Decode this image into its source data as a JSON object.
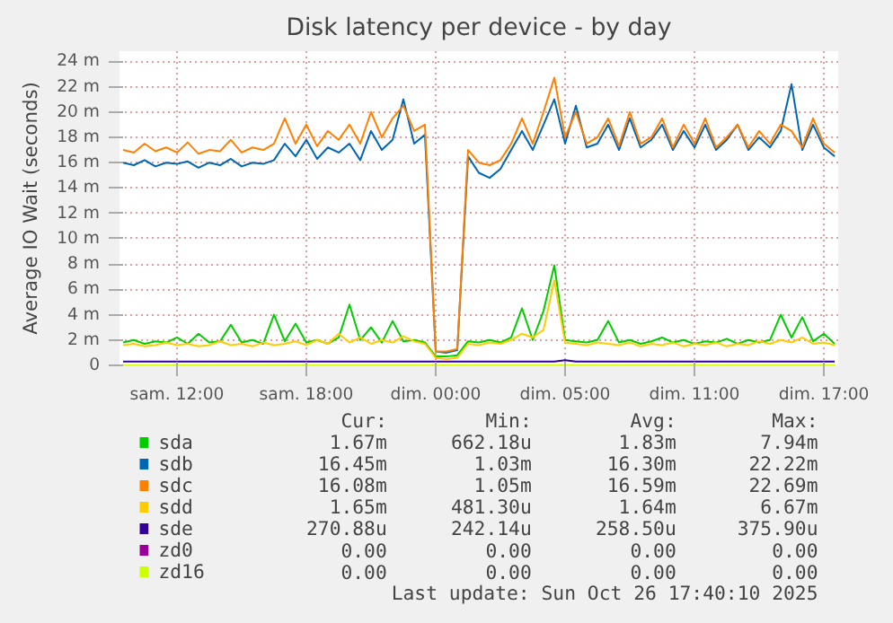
{
  "chart_data": {
    "type": "line",
    "title": "Disk latency per device - by day",
    "ylabel": "Average IO Wait (seconds)",
    "categories": [
      null,
      null,
      null,
      null,
      null,
      "sam. 12:00",
      null,
      null,
      null,
      null,
      null,
      null,
      null,
      null,
      null,
      null,
      null,
      "sam. 18:00",
      null,
      null,
      null,
      null,
      null,
      null,
      null,
      null,
      null,
      null,
      null,
      "dim. 00:00",
      null,
      null,
      null,
      null,
      null,
      null,
      null,
      null,
      null,
      null,
      null,
      "dim. 05:00",
      null,
      null,
      null,
      null,
      null,
      null,
      null,
      null,
      null,
      null,
      null,
      "dim. 11:00",
      null,
      null,
      null,
      null,
      null,
      null,
      null,
      null,
      null,
      null,
      null,
      "dim. 17:00",
      null
    ],
    "ylim": [
      0,
      24.8
    ],
    "yticks": [
      0,
      {
        "value": 2,
        "label": "2 m"
      },
      {
        "value": 4,
        "label": "4 m"
      },
      {
        "value": 6,
        "label": "6 m"
      },
      {
        "value": 8,
        "label": "8 m"
      },
      {
        "value": 10,
        "label": "10 m"
      },
      {
        "value": 12,
        "label": "12 m"
      },
      {
        "value": 14,
        "label": "14 m"
      },
      {
        "value": 16,
        "label": "16 m"
      },
      {
        "value": 18,
        "label": "18 m"
      },
      {
        "value": 20,
        "label": "20 m"
      },
      {
        "value": 22,
        "label": "22 m"
      },
      {
        "value": 24,
        "label": "24 m"
      }
    ],
    "grid": true,
    "legend": "bottom",
    "series": [
      {
        "name": "sda",
        "color": "#00cc00",
        "values": [
          1.8,
          2.0,
          1.7,
          1.9,
          1.8,
          2.2,
          1.7,
          2.5,
          1.8,
          1.9,
          3.2,
          1.8,
          2.0,
          1.7,
          4.0,
          1.9,
          3.3,
          1.8,
          2.0,
          1.7,
          2.2,
          4.8,
          2.0,
          3.0,
          1.8,
          3.5,
          1.9,
          2.0,
          1.8,
          0.7,
          0.7,
          0.8,
          1.9,
          1.8,
          2.0,
          1.8,
          2.2,
          4.5,
          2.0,
          4.3,
          7.9,
          2.0,
          1.9,
          1.8,
          2.0,
          3.5,
          1.8,
          2.0,
          1.7,
          1.9,
          2.2,
          1.8,
          2.0,
          1.7,
          1.9,
          1.8,
          2.1,
          1.7,
          2.0,
          1.8,
          2.0,
          4.0,
          2.2,
          3.8,
          1.9,
          2.5,
          1.7
        ]
      },
      {
        "name": "sdb",
        "color": "#0066b3",
        "values": [
          16.0,
          15.8,
          16.2,
          15.7,
          16.0,
          15.9,
          16.1,
          15.6,
          16.0,
          15.8,
          16.3,
          15.7,
          16.0,
          15.9,
          16.2,
          17.5,
          16.5,
          17.8,
          16.3,
          17.2,
          16.8,
          17.5,
          16.2,
          18.5,
          17.0,
          17.8,
          21.0,
          17.5,
          18.2,
          1.1,
          1.0,
          1.2,
          16.5,
          15.2,
          14.8,
          15.5,
          17.0,
          18.5,
          17.0,
          19.0,
          21.0,
          17.5,
          20.5,
          17.2,
          17.5,
          19.0,
          17.0,
          19.5,
          17.2,
          17.8,
          19.0,
          17.0,
          18.5,
          17.2,
          19.0,
          17.0,
          17.8,
          19.0,
          17.0,
          18.0,
          17.2,
          18.5,
          22.2,
          17.0,
          19.0,
          17.2,
          16.5
        ]
      },
      {
        "name": "sdc",
        "color": "#ff8000",
        "values": [
          17.0,
          16.8,
          17.5,
          16.9,
          17.2,
          16.8,
          17.6,
          16.7,
          17.0,
          16.9,
          17.8,
          16.8,
          17.2,
          17.0,
          17.5,
          19.5,
          17.5,
          19.0,
          17.3,
          18.5,
          17.8,
          19.0,
          17.5,
          20.0,
          18.0,
          19.5,
          20.5,
          18.5,
          19.0,
          1.1,
          1.1,
          1.3,
          17.0,
          16.0,
          15.8,
          16.2,
          17.5,
          19.5,
          17.5,
          20.0,
          22.7,
          18.0,
          20.0,
          17.5,
          18.0,
          19.5,
          17.3,
          20.0,
          17.5,
          18.0,
          19.5,
          17.2,
          19.0,
          17.5,
          19.5,
          17.2,
          18.0,
          19.0,
          17.2,
          18.5,
          17.5,
          19.0,
          18.5,
          17.2,
          19.5,
          17.5,
          16.8
        ]
      },
      {
        "name": "sdd",
        "color": "#ffcc00",
        "values": [
          1.6,
          1.7,
          1.5,
          1.6,
          1.8,
          1.6,
          1.7,
          1.5,
          1.6,
          1.9,
          1.6,
          1.7,
          1.5,
          1.8,
          1.6,
          1.7,
          1.9,
          1.6,
          2.0,
          1.7,
          2.5,
          1.8,
          2.2,
          1.7,
          2.0,
          1.8,
          2.3,
          1.9,
          1.7,
          0.6,
          0.5,
          0.6,
          1.7,
          1.6,
          1.8,
          1.7,
          2.0,
          2.5,
          2.2,
          2.8,
          6.7,
          1.8,
          1.7,
          1.6,
          1.8,
          1.7,
          1.6,
          1.8,
          1.5,
          1.7,
          1.6,
          1.8,
          1.5,
          1.7,
          1.6,
          1.8,
          1.5,
          1.7,
          1.6,
          1.9,
          1.7,
          2.0,
          1.8,
          2.2,
          1.7,
          1.8,
          1.6
        ]
      },
      {
        "name": "sde",
        "color": "#330099",
        "values": [
          0.3,
          0.3,
          0.3,
          0.3,
          0.3,
          0.3,
          0.3,
          0.3,
          0.3,
          0.3,
          0.3,
          0.3,
          0.3,
          0.3,
          0.3,
          0.3,
          0.3,
          0.3,
          0.3,
          0.3,
          0.3,
          0.3,
          0.3,
          0.3,
          0.3,
          0.3,
          0.3,
          0.3,
          0.3,
          0.3,
          0.3,
          0.3,
          0.3,
          0.3,
          0.3,
          0.3,
          0.3,
          0.3,
          0.3,
          0.3,
          0.3,
          0.4,
          0.3,
          0.3,
          0.3,
          0.3,
          0.3,
          0.3,
          0.3,
          0.3,
          0.3,
          0.3,
          0.3,
          0.3,
          0.3,
          0.3,
          0.3,
          0.3,
          0.3,
          0.3,
          0.3,
          0.3,
          0.3,
          0.3,
          0.3,
          0.3,
          0.3
        ]
      },
      {
        "name": "zd0",
        "color": "#990099",
        "values": [
          null,
          null,
          null,
          null,
          null,
          null,
          null,
          null,
          null,
          null,
          null,
          null,
          null,
          null,
          null,
          null,
          null,
          null,
          null,
          null,
          null,
          null,
          null,
          null,
          null,
          null,
          null,
          null,
          null,
          null,
          null,
          null,
          null,
          null,
          null,
          null,
          null,
          null,
          null,
          null,
          null,
          null,
          null,
          null,
          null,
          null,
          null,
          null,
          null,
          null,
          null,
          null,
          null,
          null,
          null,
          null,
          null,
          null,
          null,
          null,
          null,
          null,
          null,
          null,
          null,
          null,
          null
        ]
      },
      {
        "name": "zd16",
        "color": "#ccff00",
        "values": [
          0,
          0,
          0,
          0,
          0,
          0,
          0,
          0,
          0,
          0,
          0,
          0,
          0,
          0,
          0,
          0,
          0,
          0,
          0,
          0,
          0,
          0,
          0,
          0,
          0,
          0,
          0,
          0,
          0,
          0,
          0,
          0,
          0,
          0,
          0,
          0,
          0,
          0,
          0,
          0,
          0,
          0,
          0,
          0,
          0,
          0,
          0,
          0,
          0,
          0,
          0,
          0,
          0,
          0,
          0,
          0,
          0,
          0,
          0,
          0,
          0,
          0,
          0,
          0,
          0,
          0,
          0
        ]
      }
    ],
    "annotations": [
      "Cur:",
      "Min:",
      "Avg:",
      "Max:",
      "1.67m",
      "662.18u",
      "1.83m",
      "7.94m",
      "16.45m",
      "1.03m",
      "16.30m",
      "22.22m",
      "16.08m",
      "1.05m",
      "16.59m",
      "22.69m",
      "1.65m",
      "481.30u",
      "1.64m",
      "6.67m",
      "270.88u",
      "242.14u",
      "258.50u",
      "375.90u",
      "0.00",
      "0.00",
      "0.00",
      "0.00",
      "0.00",
      "0.00",
      "0.00",
      "0.00",
      "Last update: Sun Oct 26 17:40:10 2025"
    ]
  }
}
